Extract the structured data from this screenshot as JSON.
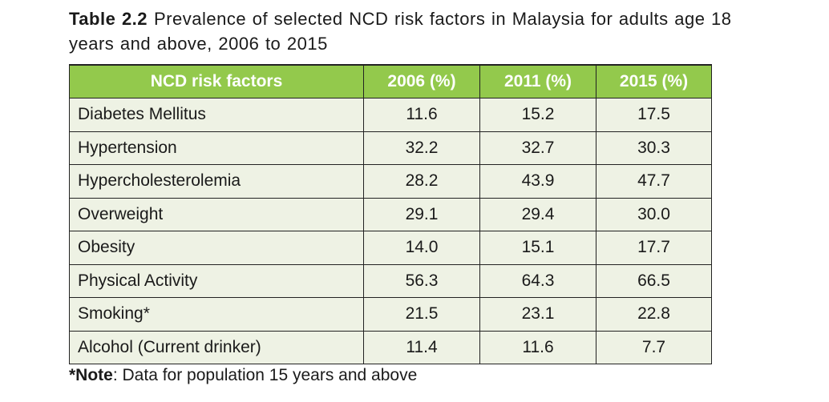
{
  "caption": {
    "label": "Table 2.2",
    "text": "Prevalence of selected NCD risk factors in Malaysia for adults age 18 years and above, 2006 to 2015"
  },
  "table": {
    "headers": [
      "NCD risk factors",
      "2006 (%)",
      "2011 (%)",
      "2015 (%)"
    ],
    "rows": [
      [
        "Diabetes Mellitus",
        "11.6",
        "15.2",
        "17.5"
      ],
      [
        "Hypertension",
        "32.2",
        "32.7",
        "30.3"
      ],
      [
        "Hypercholesterolemia",
        "28.2",
        "43.9",
        "47.7"
      ],
      [
        "Overweight",
        "29.1",
        "29.4",
        "30.0"
      ],
      [
        "Obesity",
        "14.0",
        "15.1",
        "17.7"
      ],
      [
        "Physical Activity",
        "56.3",
        "64.3",
        "66.5"
      ],
      [
        "Smoking*",
        "21.5",
        "23.1",
        "22.8"
      ],
      [
        "Alcohol (Current drinker)",
        "11.4",
        "11.6",
        "7.7"
      ]
    ]
  },
  "note": {
    "label": "*Note",
    "text": ": Data for population 15 years and above"
  },
  "colors": {
    "header_bg": "#93c94c",
    "row_bg": "#eef2e4",
    "border": "#222222"
  }
}
